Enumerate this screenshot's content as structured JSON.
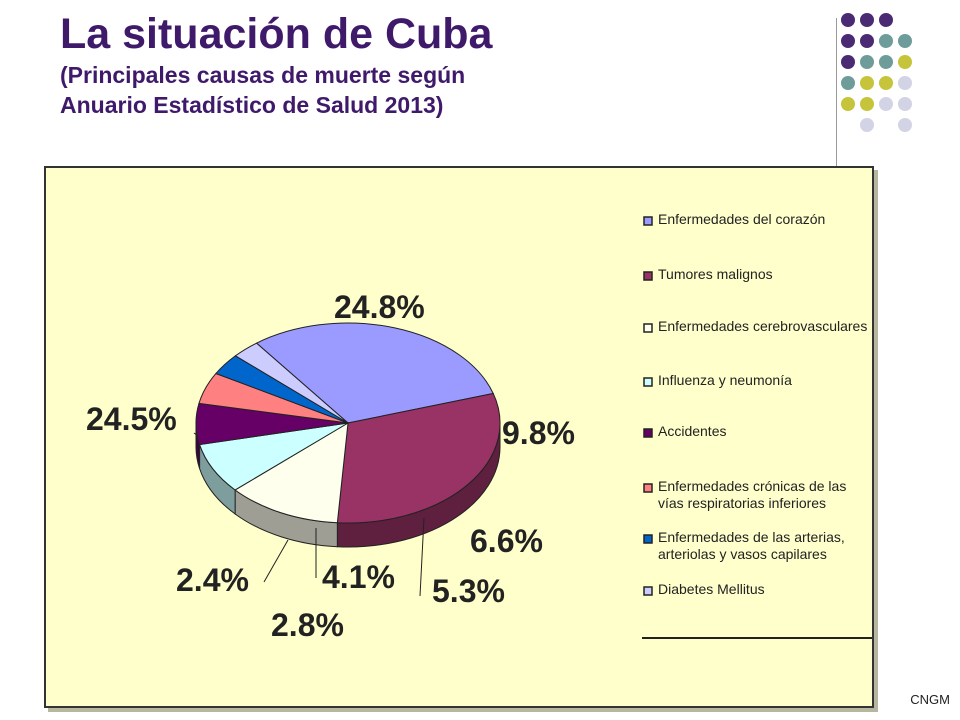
{
  "header": {
    "title": "La situación de Cuba",
    "subtitle_line1": "(Principales causas de muerte según",
    "subtitle_line2": "Anuario Estadístico de Salud 2013)"
  },
  "footer": {
    "text": "CNGM"
  },
  "decor": {
    "dot_colors": [
      "#4b2a74",
      "#6e9c9a",
      "#c6c43a",
      "#d3d3e6"
    ]
  },
  "chart_data": {
    "type": "pie",
    "title": "",
    "legend_position": "right",
    "series": [
      {
        "name": "Enfermedades del corazón",
        "value": 24.5,
        "label": "24.5%",
        "color": "#9a9aff"
      },
      {
        "name": "Tumores malignos",
        "value": 24.8,
        "label": "24.8%",
        "color": "#993366"
      },
      {
        "name": "Enfermedades cerebrovasculares",
        "value": 9.8,
        "label": "9.8%",
        "color": "#ffffee"
      },
      {
        "name": "Influenza y neumonía",
        "value": 6.6,
        "label": "6.6%",
        "color": "#ccffff"
      },
      {
        "name": "Accidentes",
        "value": 5.3,
        "label": "5.3%",
        "color": "#660066"
      },
      {
        "name": "Enfermedades crónicas de las vías respiratorias inferiores",
        "value": 4.1,
        "label": "4.1%",
        "color": "#ff8080"
      },
      {
        "name": "Enfermedades de las arterias, arteriolas y vasos capilares",
        "value": 2.8,
        "label": "2.8%",
        "color": "#0066cc"
      },
      {
        "name": "Diabetes Mellitus",
        "value": 2.4,
        "label": "2.4%",
        "color": "#ccccff"
      }
    ]
  }
}
